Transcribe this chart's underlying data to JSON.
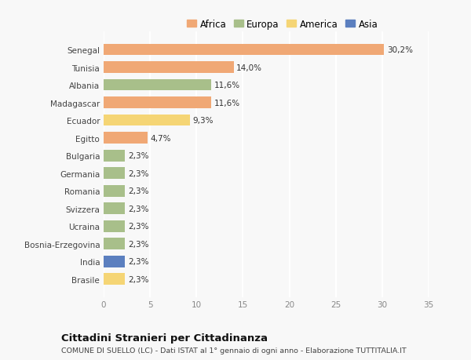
{
  "countries": [
    "Senegal",
    "Tunisia",
    "Albania",
    "Madagascar",
    "Ecuador",
    "Egitto",
    "Bulgaria",
    "Germania",
    "Romania",
    "Svizzera",
    "Ucraina",
    "Bosnia-Erzegovina",
    "India",
    "Brasile"
  ],
  "values": [
    30.2,
    14.0,
    11.6,
    11.6,
    9.3,
    4.7,
    2.3,
    2.3,
    2.3,
    2.3,
    2.3,
    2.3,
    2.3,
    2.3
  ],
  "labels": [
    "30,2%",
    "14,0%",
    "11,6%",
    "11,6%",
    "9,3%",
    "4,7%",
    "2,3%",
    "2,3%",
    "2,3%",
    "2,3%",
    "2,3%",
    "2,3%",
    "2,3%",
    "2,3%"
  ],
  "colors": [
    "#f0a875",
    "#f0a875",
    "#a8bf8a",
    "#f0a875",
    "#f5d575",
    "#f0a875",
    "#a8bf8a",
    "#a8bf8a",
    "#a8bf8a",
    "#a8bf8a",
    "#a8bf8a",
    "#a8bf8a",
    "#5b7fbf",
    "#f5d575"
  ],
  "legend": {
    "Africa": "#f0a875",
    "Europa": "#a8bf8a",
    "America": "#f5d575",
    "Asia": "#5b7fbf"
  },
  "xlim": [
    0,
    35
  ],
  "xticks": [
    0,
    5,
    10,
    15,
    20,
    25,
    30,
    35
  ],
  "title": "Cittadini Stranieri per Cittadinanza",
  "subtitle": "COMUNE DI SUELLO (LC) - Dati ISTAT al 1° gennaio di ogni anno - Elaborazione TUTTITALIA.IT",
  "background_color": "#f8f8f8",
  "bar_height": 0.65,
  "label_fontsize": 7.5,
  "tick_fontsize": 7.5,
  "ylabel_fontsize": 7.5
}
